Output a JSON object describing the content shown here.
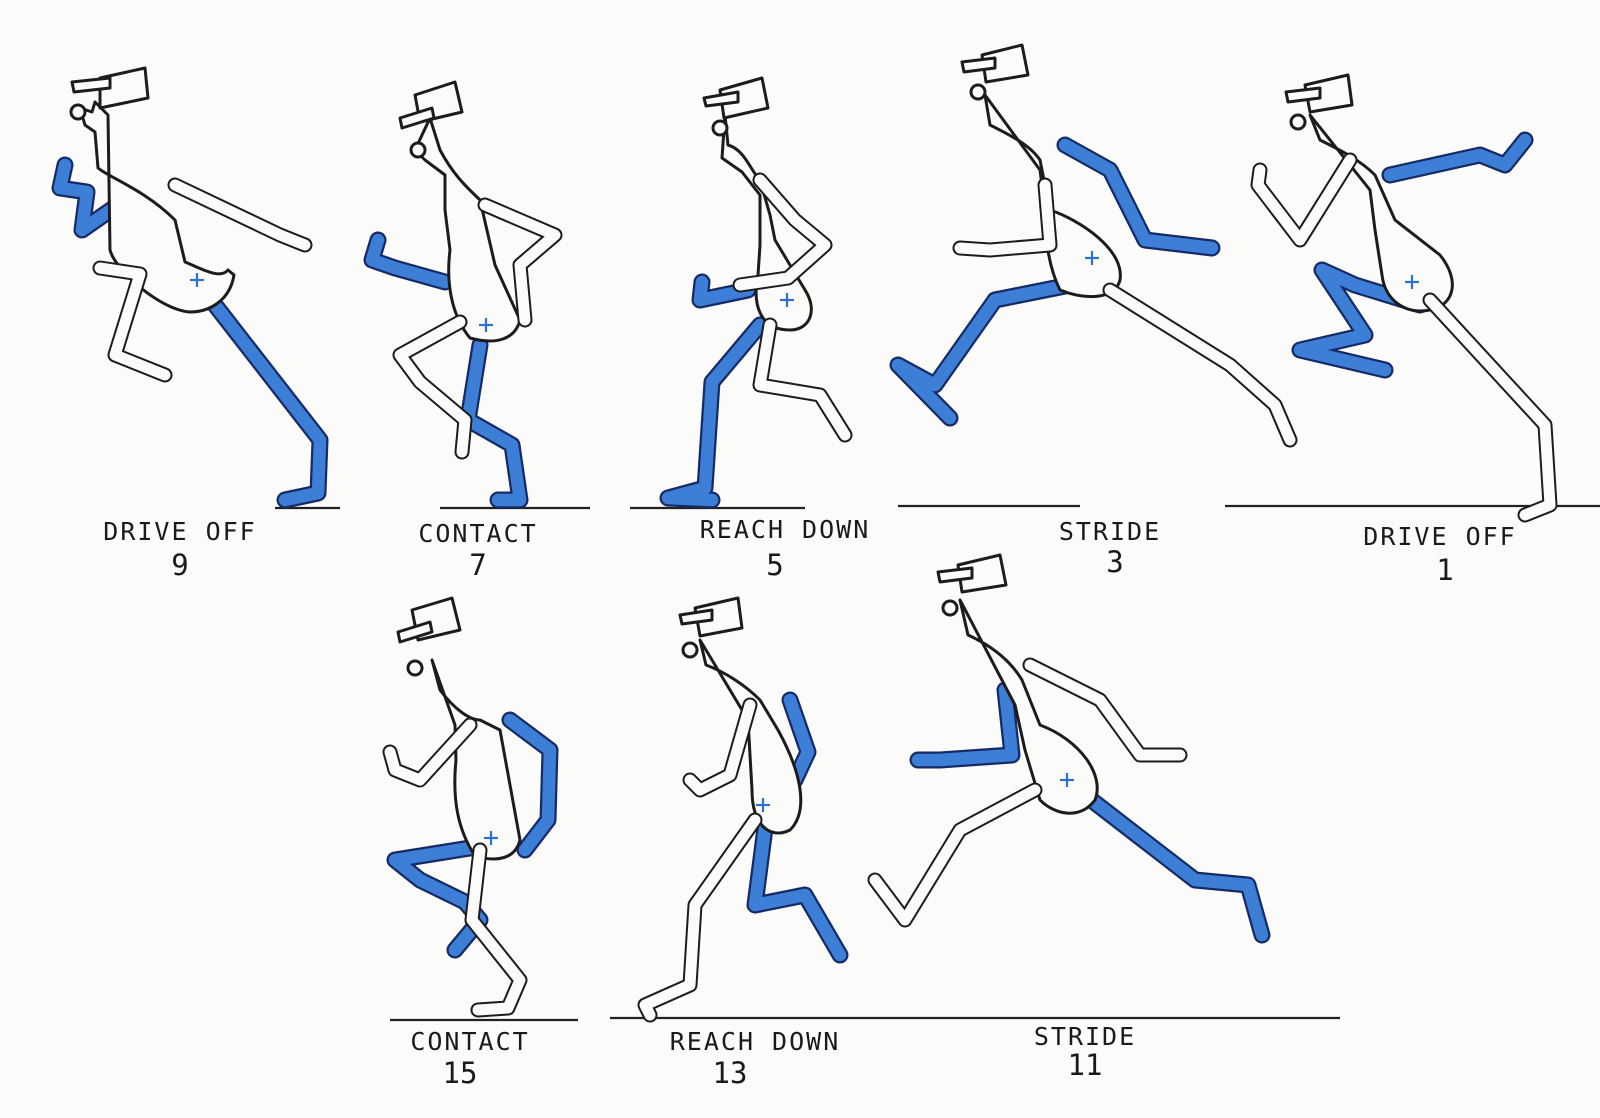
{
  "frames": [
    {
      "id": "f9",
      "label": "DRIVE OFF",
      "number": "9"
    },
    {
      "id": "f7",
      "label": "CONTACT",
      "number": "7"
    },
    {
      "id": "f5",
      "label": "REACH DOWN",
      "number": "5"
    },
    {
      "id": "f3",
      "label": "STRIDE",
      "number": "3"
    },
    {
      "id": "f1",
      "label": "DRIVE OFF",
      "number": "1"
    },
    {
      "id": "f15",
      "label": "CONTACT",
      "number": "15"
    },
    {
      "id": "f13",
      "label": "REACH DOWN",
      "number": "13"
    },
    {
      "id": "f11",
      "label": "STRIDE",
      "number": "11"
    }
  ],
  "colors": {
    "far_limbs": "#3d7fd6",
    "outline": "#1c1c1c",
    "center_of_gravity_mark": "#2f6fd0",
    "paper": "#fbfbf9"
  }
}
